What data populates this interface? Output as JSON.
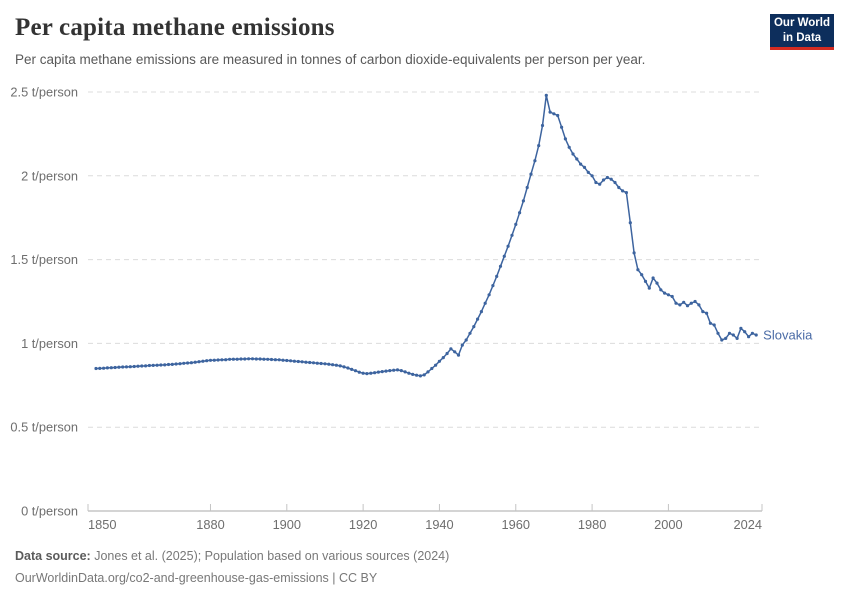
{
  "header": {
    "title": "Per capita methane emissions",
    "subtitle": "Per capita methane emissions are measured in tonnes of carbon dioxide-equivalents per person per year.",
    "logo": {
      "line1": "Our World",
      "line2": "in Data"
    }
  },
  "footer": {
    "source_label": "Data source:",
    "source_text": " Jones et al. (2025); Population based on various sources (2024)",
    "url_text": "OurWorldinData.org/co2-and-greenhouse-gas-emissions | CC BY"
  },
  "colors": {
    "line": "#3d649f",
    "entity_label": "#4a6ba6",
    "logo_bg": "#0d2e5c",
    "logo_underline": "#d42b21",
    "gridline": "#dcdcdc",
    "axis": "#a8a8a8",
    "tick_mark": "#c4c4c4"
  },
  "chart_data": {
    "type": "line",
    "title": "Per capita methane emissions",
    "subtitle": "Per capita methane emissions are measured in tonnes of carbon dioxide-equivalents per person per year.",
    "unit": "t/person",
    "grid": "horizontal-dashed",
    "legend_position": "end-of-line-label",
    "x_domain": [
      1850,
      2024
    ],
    "ylim": [
      0,
      2.5
    ],
    "x_ticks": [
      {
        "year": 1850,
        "label": "1850"
      },
      {
        "year": 1880,
        "label": "1880"
      },
      {
        "year": 1900,
        "label": "1900"
      },
      {
        "year": 1920,
        "label": "1920"
      },
      {
        "year": 1940,
        "label": "1940"
      },
      {
        "year": 1960,
        "label": "1960"
      },
      {
        "year": 1980,
        "label": "1980"
      },
      {
        "year": 2000,
        "label": "2000"
      },
      {
        "year": 2024,
        "label": "2024"
      }
    ],
    "y_ticks": [
      {
        "value": 0,
        "label": "0 t/person"
      },
      {
        "value": 0.5,
        "label": "0.5 t/person"
      },
      {
        "value": 1,
        "label": "1 t/person"
      },
      {
        "value": 1.5,
        "label": "1.5 t/person"
      },
      {
        "value": 2,
        "label": "2 t/person"
      },
      {
        "value": 2.5,
        "label": "2.5 t/person"
      }
    ],
    "series": [
      {
        "name": "Slovakia",
        "x_start": 1850,
        "x_step": 1,
        "values": [
          0.85,
          0.851,
          0.852,
          0.854,
          0.855,
          0.856,
          0.858,
          0.859,
          0.86,
          0.861,
          0.862,
          0.864,
          0.865,
          0.866,
          0.868,
          0.869,
          0.87,
          0.871,
          0.872,
          0.874,
          0.875,
          0.877,
          0.879,
          0.881,
          0.883,
          0.885,
          0.888,
          0.891,
          0.894,
          0.897,
          0.899,
          0.9,
          0.901,
          0.902,
          0.903,
          0.905,
          0.906,
          0.906,
          0.907,
          0.907,
          0.908,
          0.908,
          0.907,
          0.907,
          0.906,
          0.905,
          0.904,
          0.903,
          0.902,
          0.9,
          0.898,
          0.896,
          0.894,
          0.892,
          0.89,
          0.888,
          0.886,
          0.884,
          0.882,
          0.88,
          0.878,
          0.876,
          0.873,
          0.87,
          0.866,
          0.86,
          0.853,
          0.845,
          0.837,
          0.828,
          0.822,
          0.82,
          0.822,
          0.825,
          0.829,
          0.832,
          0.835,
          0.838,
          0.84,
          0.842,
          0.838,
          0.83,
          0.822,
          0.815,
          0.81,
          0.806,
          0.812,
          0.83,
          0.85,
          0.87,
          0.893,
          0.915,
          0.94,
          0.968,
          0.95,
          0.93,
          0.99,
          1.02,
          1.06,
          1.1,
          1.145,
          1.19,
          1.24,
          1.29,
          1.345,
          1.4,
          1.46,
          1.52,
          1.58,
          1.645,
          1.71,
          1.78,
          1.85,
          1.93,
          2.01,
          2.09,
          2.18,
          2.3,
          2.48,
          2.38,
          2.37,
          2.36,
          2.29,
          2.22,
          2.17,
          2.13,
          2.1,
          2.07,
          2.05,
          2.02,
          2.0,
          1.96,
          1.95,
          1.975,
          1.99,
          1.98,
          1.96,
          1.93,
          1.91,
          1.9,
          1.72,
          1.54,
          1.44,
          1.41,
          1.37,
          1.33,
          1.39,
          1.36,
          1.32,
          1.3,
          1.29,
          1.28,
          1.24,
          1.23,
          1.245,
          1.225,
          1.24,
          1.25,
          1.23,
          1.19,
          1.18,
          1.12,
          1.11,
          1.06,
          1.02,
          1.03,
          1.06,
          1.05,
          1.03,
          1.09,
          1.07,
          1.04,
          1.06,
          1.05
        ]
      }
    ]
  }
}
